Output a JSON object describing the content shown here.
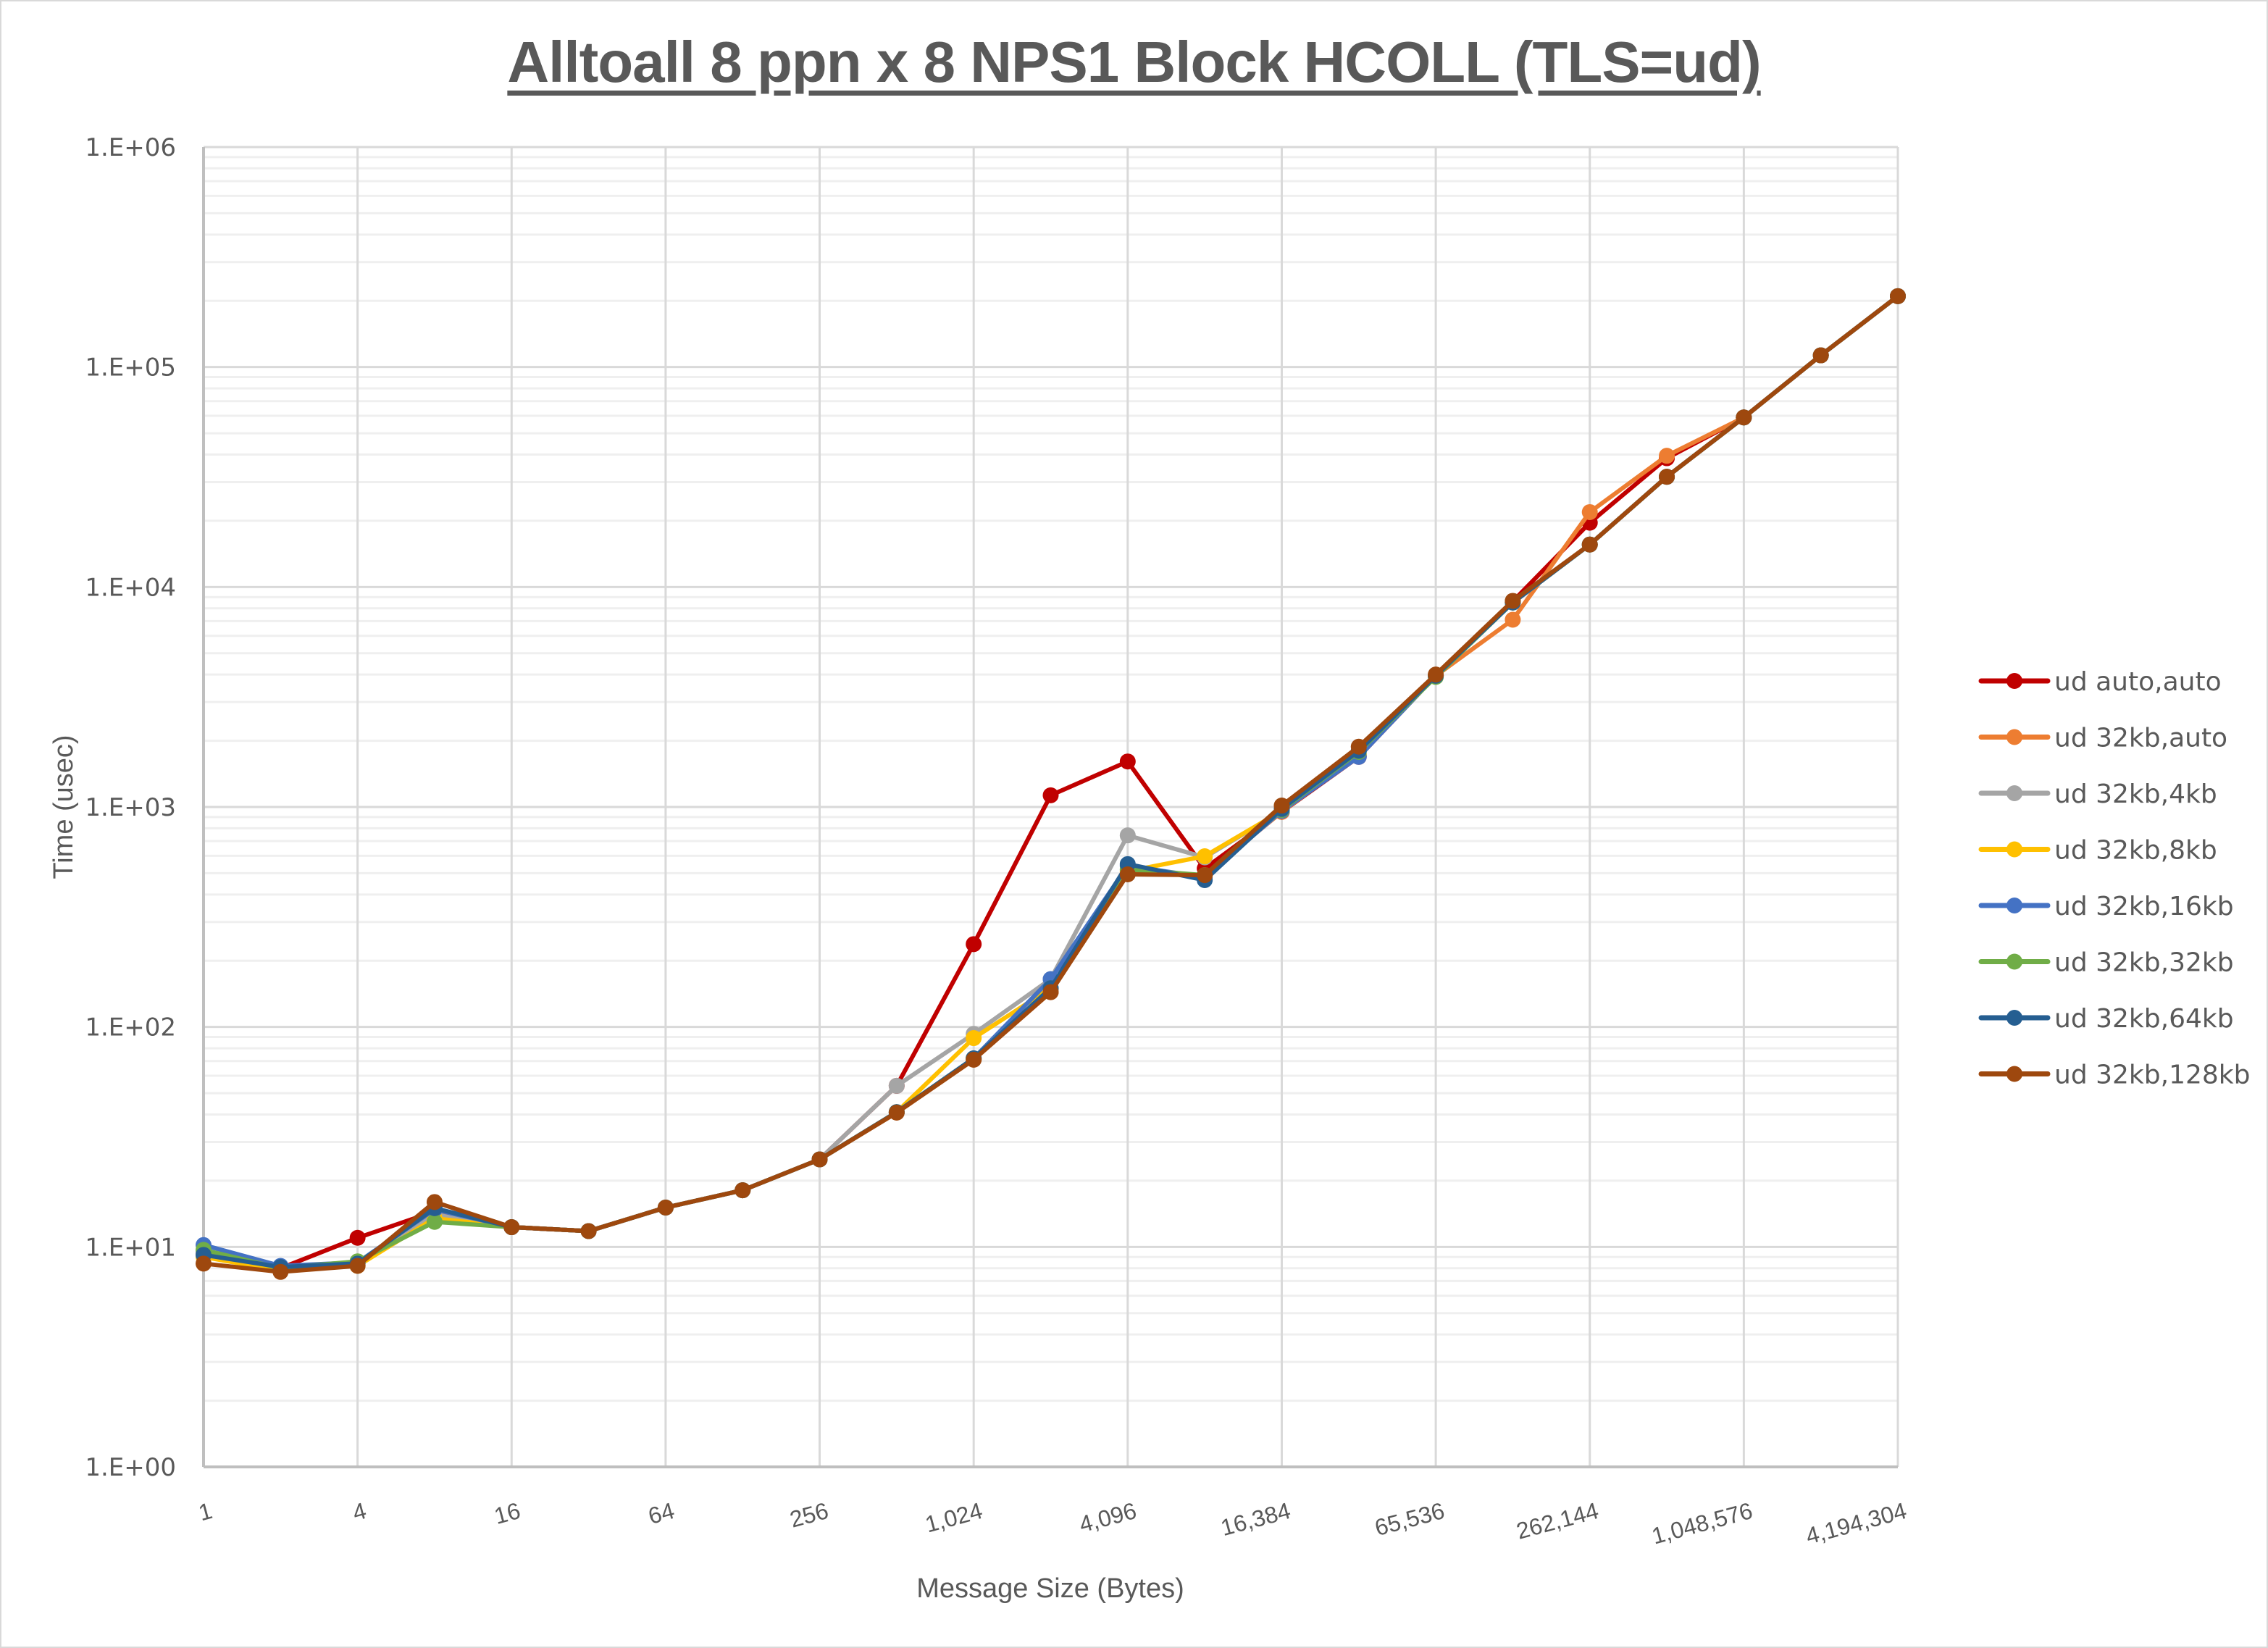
{
  "chart_data": {
    "type": "line",
    "title": "Alltoall 8 ppn x 8 NPS1 Block HCOLL (TLS=ud)",
    "xlabel": "Message Size (Bytes)",
    "ylabel": "Time (usec)",
    "yscale": "log",
    "xscale": "log2",
    "ylim": [
      1,
      1000000
    ],
    "y_tick_labels": [
      "1.E+00",
      "1.E+01",
      "1.E+02",
      "1.E+03",
      "1.E+04",
      "1.E+05",
      "1.E+06"
    ],
    "x_tick_labels": [
      "1",
      "4",
      "16",
      "64",
      "256",
      "1,024",
      "4,096",
      "16,384",
      "65,536",
      "262,144",
      "1,048,576",
      "4,194,304"
    ],
    "x": [
      1,
      2,
      4,
      8,
      16,
      32,
      64,
      128,
      256,
      512,
      1024,
      2048,
      4096,
      8192,
      16384,
      32768,
      65536,
      131072,
      262144,
      524288,
      1048576,
      2097152,
      4194304
    ],
    "grid": true,
    "legend_position": "right",
    "series": [
      {
        "name": "ud auto,auto",
        "color": "#C00000",
        "values": [
          9.3,
          8.0,
          11.0,
          14.5,
          12.3,
          11.8,
          15.1,
          18.1,
          25.0,
          54,
          238,
          1130,
          1610,
          525,
          950,
          1690,
          3950,
          8600,
          19600,
          38500,
          59000,
          113000,
          210000
        ]
      },
      {
        "name": "ud 32kb,auto",
        "color": "#ED7D31",
        "values": [
          9.3,
          8.0,
          8.4,
          14.5,
          12.3,
          11.8,
          15.1,
          18.1,
          25.0,
          40.8,
          71,
          144,
          500,
          490,
          950,
          1720,
          3950,
          7100,
          21900,
          39500,
          59000,
          113000,
          210000
        ]
      },
      {
        "name": "ud 32kb,4kb",
        "color": "#A5A5A5",
        "values": [
          9.5,
          8.0,
          8.5,
          14.0,
          12.3,
          11.8,
          15.1,
          18.1,
          25.0,
          54,
          93,
          165,
          743,
          590,
          960,
          1730,
          3950,
          8500,
          15600,
          31700,
          59000,
          113000,
          210000
        ]
      },
      {
        "name": "ud 32kb,8kb",
        "color": "#FFC000",
        "values": [
          9.0,
          7.8,
          8.2,
          13.5,
          12.3,
          11.8,
          15.1,
          18.1,
          25.0,
          41,
          89,
          150,
          510,
          597,
          960,
          1730,
          3950,
          8500,
          15600,
          31700,
          59000,
          113000,
          210000
        ]
      },
      {
        "name": "ud 32kb,16kb",
        "color": "#4472C4",
        "values": [
          10.2,
          8.2,
          8.5,
          14.8,
          12.3,
          11.8,
          15.1,
          18.1,
          25.0,
          41,
          72,
          165,
          540,
          480,
          960,
          1690,
          3950,
          8500,
          15600,
          31700,
          59000,
          113000,
          210000
        ]
      },
      {
        "name": "ud 32kb,32kb",
        "color": "#70AD47",
        "values": [
          9.7,
          8.0,
          8.6,
          13.0,
          12.3,
          11.8,
          15.1,
          18.1,
          25.0,
          41,
          72,
          150,
          520,
          490,
          970,
          1780,
          3900,
          8500,
          15600,
          31700,
          59000,
          113000,
          210000
        ]
      },
      {
        "name": "ud 32kb,64kb",
        "color": "#255E91",
        "values": [
          9.2,
          8.1,
          8.4,
          15.0,
          12.3,
          11.8,
          15.1,
          18.1,
          25.0,
          41,
          72,
          150,
          550,
          465,
          980,
          1800,
          3950,
          8500,
          15600,
          31700,
          59000,
          113000,
          210000
        ]
      },
      {
        "name": "ud 32kb,128kb",
        "color": "#9E480E",
        "values": [
          8.4,
          7.7,
          8.2,
          16.0,
          12.3,
          11.8,
          15.1,
          18.1,
          25.0,
          40.8,
          71,
          144,
          494,
          490,
          1015,
          1880,
          4000,
          8650,
          15600,
          31700,
          59000,
          113000,
          210000
        ]
      }
    ]
  }
}
